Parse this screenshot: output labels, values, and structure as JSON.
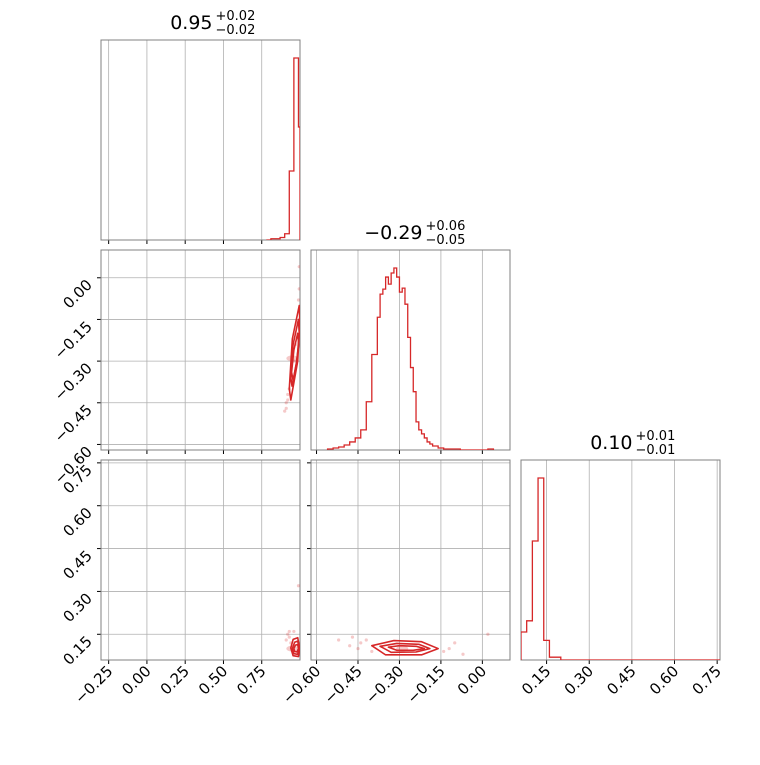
{
  "colors": {
    "line": "#d62728",
    "grid": "#b0b0b0",
    "frame": "#808080",
    "background": "#ffffff"
  },
  "chart_data": {
    "type": "corner",
    "parameters": [
      {
        "title_main": "0.95",
        "title_sup": "+0.02",
        "title_sub": "−0.02",
        "range": [
          -0.3,
          1.0
        ],
        "ticks": [
          -0.25,
          0.0,
          0.25,
          0.5,
          0.75
        ],
        "tick_labels": [
          "−0.25",
          "0.00",
          "0.25",
          "0.50",
          "0.75"
        ]
      },
      {
        "title_main": "−0.29",
        "title_sup": "+0.06",
        "title_sub": "−0.05",
        "range": [
          -0.62,
          0.1
        ],
        "ticks": [
          -0.6,
          -0.45,
          -0.3,
          -0.15,
          0.0
        ],
        "tick_labels": [
          "−0.60",
          "−0.45",
          "−0.30",
          "−0.15",
          "0.00"
        ]
      },
      {
        "title_main": "0.10",
        "title_sup": "+0.01",
        "title_sub": "−0.01",
        "range": [
          0.06,
          0.76
        ],
        "ticks": [
          0.15,
          0.3,
          0.45,
          0.6,
          0.75
        ],
        "tick_labels": [
          "0.15",
          "0.30",
          "0.45",
          "0.60",
          "0.75"
        ]
      }
    ],
    "histograms": [
      {
        "param": 0,
        "edges": [
          0.78,
          0.81,
          0.84,
          0.87,
          0.9,
          0.93,
          0.96,
          0.99,
          1.0
        ],
        "counts": [
          0,
          1,
          1,
          2,
          5,
          55,
          145,
          90
        ]
      },
      {
        "param": 1,
        "edges": [
          -0.56,
          -0.54,
          -0.52,
          -0.5,
          -0.48,
          -0.46,
          -0.44,
          -0.42,
          -0.4,
          -0.38,
          -0.37,
          -0.36,
          -0.35,
          -0.34,
          -0.33,
          -0.32,
          -0.31,
          -0.3,
          -0.29,
          -0.28,
          -0.27,
          -0.26,
          -0.25,
          -0.24,
          -0.23,
          -0.22,
          -0.21,
          -0.2,
          -0.19,
          -0.18,
          -0.16,
          -0.14,
          -0.12,
          -0.1,
          -0.08,
          -0.06,
          0.02,
          0.04
        ],
        "counts": [
          1,
          2,
          3,
          5,
          8,
          12,
          20,
          48,
          95,
          132,
          155,
          160,
          172,
          165,
          176,
          181,
          172,
          157,
          161,
          145,
          112,
          82,
          58,
          28,
          20,
          16,
          12,
          8,
          6,
          4,
          2,
          1,
          1,
          1,
          0,
          0,
          1
        ]
      },
      {
        "param": 2,
        "edges": [
          0.06,
          0.08,
          0.1,
          0.12,
          0.14,
          0.16,
          0.2,
          0.76
        ],
        "counts": [
          20,
          28,
          85,
          130,
          14,
          2,
          0
        ]
      }
    ],
    "contour_panels": [
      {
        "x_param": 0,
        "y_param": 1,
        "center": [
          0.95,
          -0.29
        ],
        "contours": [
          [
            [
              0.945,
              -0.34
            ],
            [
              0.96,
              -0.26
            ],
            [
              0.985,
              -0.2
            ],
            [
              0.992,
              -0.24
            ],
            [
              0.975,
              -0.31
            ],
            [
              0.955,
              -0.37
            ]
          ],
          [
            [
              0.94,
              -0.36
            ],
            [
              0.955,
              -0.24
            ],
            [
              0.99,
              -0.15
            ],
            [
              0.995,
              -0.2
            ],
            [
              0.98,
              -0.3
            ],
            [
              0.948,
              -0.39
            ]
          ],
          [
            [
              0.93,
              -0.4
            ],
            [
              0.95,
              -0.22
            ],
            [
              0.995,
              -0.1
            ],
            [
              0.999,
              -0.16
            ],
            [
              0.985,
              -0.3
            ],
            [
              0.94,
              -0.44
            ]
          ]
        ],
        "scatter": [
          [
            0.9,
            -0.48
          ],
          [
            0.91,
            -0.45
          ],
          [
            0.92,
            -0.42
          ],
          [
            0.93,
            -0.4
          ],
          [
            0.94,
            -0.37
          ],
          [
            0.96,
            -0.3
          ],
          [
            0.97,
            -0.24
          ],
          [
            0.985,
            -0.16
          ],
          [
            0.99,
            -0.08
          ],
          [
            0.995,
            -0.04
          ],
          [
            0.92,
            -0.44
          ],
          [
            0.91,
            -0.47
          ],
          [
            0.995,
            0.04
          ]
        ]
      },
      {
        "x_param": 0,
        "y_param": 2,
        "center": [
          0.95,
          0.1
        ],
        "contours": [
          [
            [
              0.96,
              0.1
            ],
            [
              0.97,
              0.112
            ],
            [
              0.985,
              0.114
            ],
            [
              0.99,
              0.1
            ],
            [
              0.98,
              0.088
            ],
            [
              0.965,
              0.09
            ]
          ],
          [
            [
              0.95,
              0.1
            ],
            [
              0.965,
              0.122
            ],
            [
              0.985,
              0.126
            ],
            [
              0.995,
              0.1
            ],
            [
              0.985,
              0.08
            ],
            [
              0.96,
              0.082
            ]
          ],
          [
            [
              0.94,
              0.102
            ],
            [
              0.955,
              0.132
            ],
            [
              0.985,
              0.138
            ],
            [
              0.999,
              0.1
            ],
            [
              0.99,
              0.072
            ],
            [
              0.955,
              0.075
            ]
          ]
        ],
        "scatter": [
          [
            0.92,
            0.15
          ],
          [
            0.93,
            0.14
          ],
          [
            0.94,
            0.12
          ],
          [
            0.99,
            0.32
          ],
          [
            0.93,
            0.16
          ],
          [
            0.96,
            0.16
          ],
          [
            0.91,
            0.13
          ]
        ]
      },
      {
        "x_param": 1,
        "y_param": 2,
        "center": [
          -0.29,
          0.1
        ],
        "contours": [
          [
            [
              -0.34,
              0.105
            ],
            [
              -0.3,
              0.11
            ],
            [
              -0.24,
              0.108
            ],
            [
              -0.21,
              0.1
            ],
            [
              -0.25,
              0.094
            ],
            [
              -0.31,
              0.094
            ]
          ],
          [
            [
              -0.37,
              0.108
            ],
            [
              -0.31,
              0.118
            ],
            [
              -0.23,
              0.115
            ],
            [
              -0.19,
              0.1
            ],
            [
              -0.24,
              0.088
            ],
            [
              -0.33,
              0.087
            ]
          ],
          [
            [
              -0.4,
              0.11
            ],
            [
              -0.32,
              0.128
            ],
            [
              -0.22,
              0.124
            ],
            [
              -0.16,
              0.1
            ],
            [
              -0.22,
              0.078
            ],
            [
              -0.35,
              0.078
            ]
          ]
        ],
        "scatter": [
          [
            -0.52,
            0.13
          ],
          [
            -0.47,
            0.14
          ],
          [
            -0.44,
            0.12
          ],
          [
            -0.42,
            0.13
          ],
          [
            -0.14,
            0.09
          ],
          [
            -0.1,
            0.12
          ],
          [
            -0.07,
            0.08
          ],
          [
            0.02,
            0.15
          ],
          [
            -0.48,
            0.11
          ],
          [
            -0.12,
            0.1
          ],
          [
            -0.4,
            0.09
          ],
          [
            -0.45,
            0.1
          ]
        ]
      }
    ]
  }
}
